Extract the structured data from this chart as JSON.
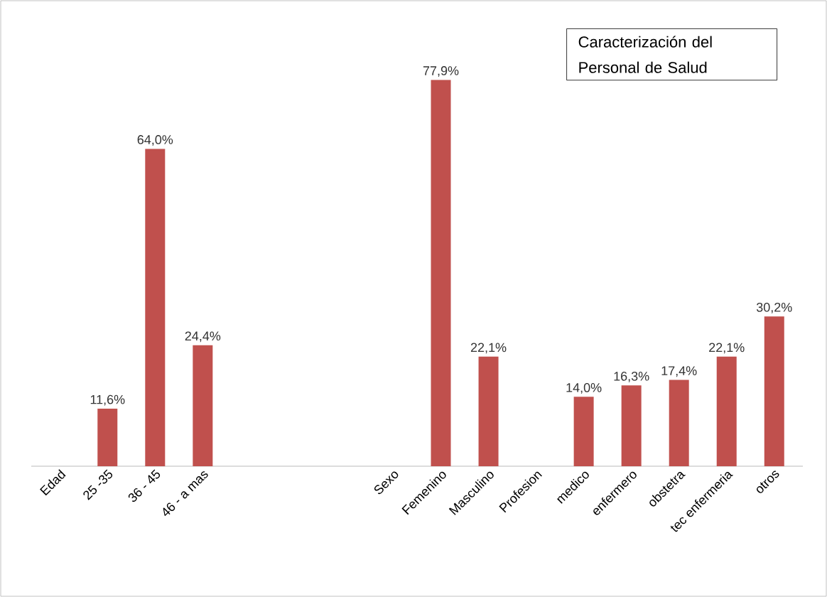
{
  "chart_data": {
    "type": "bar",
    "title": "Caracterización del Personal de Salud",
    "categories": [
      "Edad",
      "25 -35",
      "36 - 45",
      "46 - a mas",
      null,
      null,
      null,
      "Sexo",
      "Femenino",
      "Masculino",
      "Profesion",
      "medico",
      "enfermero",
      "obstetra",
      "tec enfermeria",
      "otros"
    ],
    "values": [
      null,
      11.6,
      64.0,
      24.4,
      null,
      null,
      null,
      null,
      77.9,
      22.1,
      null,
      14.0,
      16.3,
      17.4,
      22.1,
      30.2
    ],
    "value_labels": [
      null,
      "11,6%",
      "64,0%",
      "24,4%",
      null,
      null,
      null,
      null,
      "77,9%",
      "22,1%",
      null,
      "14,0%",
      "16,3%",
      "17,4%",
      "22,1%",
      "30,2%"
    ],
    "color": "#c0504d"
  }
}
